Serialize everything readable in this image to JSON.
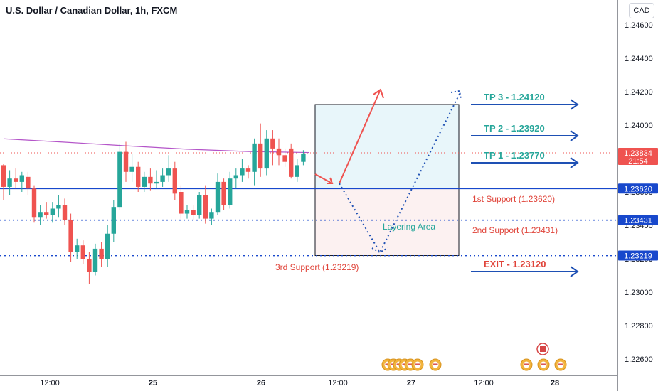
{
  "header": {
    "title": "U.S. Dollar / Canadian Dollar, 1h, FXCM",
    "currency_button": "CAD"
  },
  "colors": {
    "up": "#26a69a",
    "down": "#ef5350",
    "support_line": "#1848cc",
    "ma": "#b455c9",
    "target_text": "#26a69a",
    "support_text": "#e0443a",
    "exit_text": "#e0443a",
    "arrow_red": "#ef5350",
    "arrow_blue": "#1e50b4",
    "tp_box": "#e8f6fa",
    "support_box": "#fcf1f1"
  },
  "chart_data": {
    "type": "candlestick",
    "symbol": "USDCAD",
    "timeframe": "1h",
    "x_tick_labels": [
      "12:00",
      "25",
      "12:00",
      "26",
      "12:00",
      "27",
      "12:00",
      "28"
    ],
    "ylim": [
      1.2251,
      1.2475
    ],
    "y_tick_labels": [
      "1.24600",
      "1.24400",
      "1.24200",
      "1.24000",
      "1.23800",
      "1.23600",
      "1.23400",
      "1.23200",
      "1.23000",
      "1.22800",
      "1.22600"
    ],
    "last_price": "1.23834",
    "countdown": "21:54",
    "candles": [
      [
        1.2376,
        1.2377,
        1.2355,
        1.2363
      ],
      [
        1.2363,
        1.2373,
        1.2358,
        1.2368
      ],
      [
        1.2368,
        1.2374,
        1.2362,
        1.2366
      ],
      [
        1.2366,
        1.2372,
        1.236,
        1.237
      ],
      [
        1.2369,
        1.2372,
        1.2358,
        1.2362
      ],
      [
        1.2362,
        1.2364,
        1.2342,
        1.2345
      ],
      [
        1.2345,
        1.2352,
        1.234,
        1.2348
      ],
      [
        1.2348,
        1.2354,
        1.2344,
        1.2346
      ],
      [
        1.2346,
        1.2354,
        1.2342,
        1.235
      ],
      [
        1.235,
        1.2358,
        1.2345,
        1.2352
      ],
      [
        1.2352,
        1.2356,
        1.234,
        1.2343
      ],
      [
        1.2343,
        1.2347,
        1.2318,
        1.2324
      ],
      [
        1.2324,
        1.2332,
        1.232,
        1.2328
      ],
      [
        1.2328,
        1.2331,
        1.2317,
        1.232
      ],
      [
        1.232,
        1.2324,
        1.2305,
        1.2312
      ],
      [
        1.2312,
        1.2329,
        1.231,
        1.2326
      ],
      [
        1.2326,
        1.233,
        1.2315,
        1.232
      ],
      [
        1.232,
        1.234,
        1.2315,
        1.2335
      ],
      [
        1.2335,
        1.2355,
        1.233,
        1.2351
      ],
      [
        1.2351,
        1.2389,
        1.2349,
        1.2384
      ],
      [
        1.2384,
        1.239,
        1.2366,
        1.2372
      ],
      [
        1.2372,
        1.2383,
        1.2366,
        1.2375
      ],
      [
        1.2375,
        1.2378,
        1.236,
        1.2363
      ],
      [
        1.2363,
        1.2372,
        1.236,
        1.2369
      ],
      [
        1.2369,
        1.2374,
        1.2361,
        1.2365
      ],
      [
        1.2365,
        1.2373,
        1.2362,
        1.2366
      ],
      [
        1.2366,
        1.2374,
        1.2363,
        1.237
      ],
      [
        1.237,
        1.2382,
        1.2366,
        1.2374
      ],
      [
        1.2374,
        1.2378,
        1.2355,
        1.2359
      ],
      [
        1.236,
        1.2364,
        1.2344,
        1.2347
      ],
      [
        1.2347,
        1.2352,
        1.2344,
        1.2349
      ],
      [
        1.2349,
        1.2352,
        1.2343,
        1.2346
      ],
      [
        1.2346,
        1.236,
        1.2344,
        1.2358
      ],
      [
        1.2358,
        1.2364,
        1.2341,
        1.2344
      ],
      [
        1.2344,
        1.235,
        1.234,
        1.2348
      ],
      [
        1.2348,
        1.2371,
        1.2346,
        1.2366
      ],
      [
        1.2366,
        1.2368,
        1.2349,
        1.2352
      ],
      [
        1.2352,
        1.2372,
        1.235,
        1.2368
      ],
      [
        1.2368,
        1.2374,
        1.2362,
        1.237
      ],
      [
        1.237,
        1.238,
        1.2366,
        1.2374
      ],
      [
        1.2374,
        1.2376,
        1.2368,
        1.2372
      ],
      [
        1.2372,
        1.2392,
        1.2364,
        1.2389
      ],
      [
        1.2389,
        1.2401,
        1.2369,
        1.2374
      ],
      [
        1.2374,
        1.2397,
        1.237,
        1.2392
      ],
      [
        1.2392,
        1.2397,
        1.2376,
        1.2386
      ],
      [
        1.2386,
        1.2392,
        1.2376,
        1.2382
      ],
      [
        1.2382,
        1.2386,
        1.2375,
        1.2378
      ],
      [
        1.2386,
        1.2389,
        1.2368,
        1.2369
      ],
      [
        1.2369,
        1.238,
        1.2366,
        1.2376
      ],
      [
        1.2378,
        1.2385,
        1.2376,
        1.2383
      ]
    ],
    "moving_average": [
      [
        0,
        1.23918
      ],
      [
        10,
        1.23898
      ],
      [
        20,
        1.23876
      ],
      [
        30,
        1.23856
      ],
      [
        40,
        1.23842
      ],
      [
        50,
        1.23836
      ]
    ],
    "levels": [
      {
        "name": "tp3",
        "label": "TP 3 - 1.24120",
        "value": 1.2412
      },
      {
        "name": "tp2",
        "label": "TP 2 - 1.23920",
        "value": 1.2392
      },
      {
        "name": "tp1",
        "label": "TP 1 - 1.23770",
        "value": 1.2377
      },
      {
        "name": "support1",
        "label": "1st Support (1.23620)",
        "value": 1.2362,
        "tag": "1.23620"
      },
      {
        "name": "support2",
        "label": "2nd Support (1.23431)",
        "value": 1.23431,
        "tag": "1.23431"
      },
      {
        "name": "support3",
        "label": "3rd Support (1.23219)",
        "value": 1.23219,
        "tag": "1.23219"
      },
      {
        "name": "exit",
        "label": "EXIT - 1.23120",
        "value": 1.2312
      }
    ],
    "layering_label": "Layering Area"
  }
}
